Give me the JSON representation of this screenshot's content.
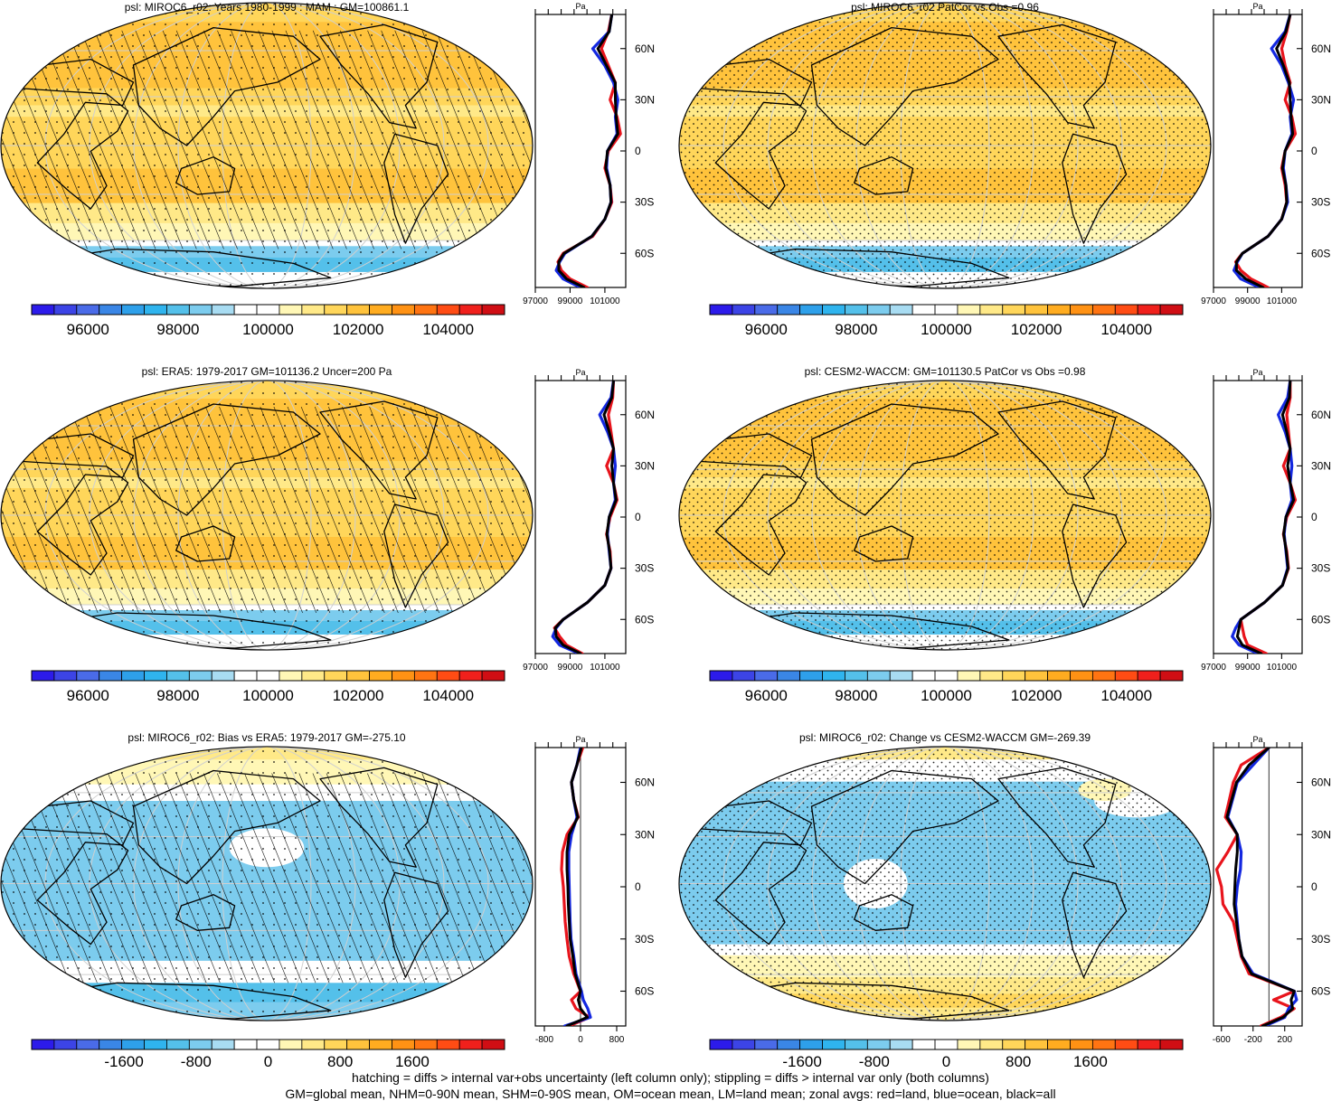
{
  "colors": {
    "abs_palette": [
      "#2c1bea",
      "#3c44e6",
      "#4a6be8",
      "#3a86e6",
      "#2ea0ea",
      "#2fb4ee",
      "#54c0ea",
      "#7cccee",
      "#a8dcf2",
      "#ffffff",
      "#ffffff",
      "#fff7b6",
      "#ffe988",
      "#ffd65a",
      "#ffc33c",
      "#ffac20",
      "#ff9214",
      "#ff7412",
      "#ff4c14",
      "#f0201c",
      "#d00e14"
    ],
    "diff_palette": [
      "#2c1bea",
      "#3c44e6",
      "#4a6be8",
      "#3a86e6",
      "#2ea0ea",
      "#2fb4ee",
      "#54c0ea",
      "#7cccee",
      "#a8dcf2",
      "#ffffff",
      "#ffffff",
      "#fff7b6",
      "#ffe988",
      "#ffd65a",
      "#ffc33c",
      "#ffac20",
      "#ff9214",
      "#ff7412",
      "#ff4c14",
      "#f0201c",
      "#d00e14"
    ],
    "land_line": "#e8141c",
    "ocean_line": "#1428e0",
    "all_line": "#000000"
  },
  "zonal_lat_ticks": [
    "60N",
    "30N",
    "0",
    "30S",
    "60S"
  ],
  "zonal_lat_values": [
    60,
    30,
    0,
    -30,
    -60
  ],
  "panels": [
    {
      "id": "mam-model",
      "title": "psl: MIROC6_r02: Years 1980-1999 : MAM : GM=100861.1",
      "kind": "abs",
      "hatch": true,
      "stipple": "light",
      "colorbar_labels": [
        "96000",
        "98000",
        "100000",
        "102000",
        "104000"
      ],
      "colorbar_values": [
        96000,
        98000,
        100000,
        102000,
        104000
      ],
      "colorbar_range": [
        94750,
        105250
      ],
      "zonal_unit": "Pa",
      "zonal_ticks": [
        "97000",
        "99000",
        "101000"
      ],
      "zonal_tick_values": [
        97000,
        99000,
        101000
      ],
      "zonal_xlim": [
        97000,
        102200
      ],
      "zonal_zero_line": false
    },
    {
      "id": "patcor",
      "title": "psl: MIROC6_r02 PatCor vs Obs =0.96",
      "kind": "abs",
      "hatch": false,
      "stipple": "dense",
      "colorbar_labels": [
        "96000",
        "98000",
        "100000",
        "102000",
        "104000"
      ],
      "colorbar_values": [
        96000,
        98000,
        100000,
        102000,
        104000
      ],
      "colorbar_range": [
        94750,
        105250
      ],
      "zonal_unit": "Pa",
      "zonal_ticks": [
        "97000",
        "99000",
        "101000"
      ],
      "zonal_tick_values": [
        97000,
        99000,
        101000
      ],
      "zonal_xlim": [
        97000,
        102200
      ],
      "zonal_zero_line": false
    },
    {
      "id": "era5",
      "title": "psl: ERA5: 1979-2017 GM=101136.2 Uncer=200 Pa",
      "kind": "abs",
      "hatch": true,
      "stipple": "light",
      "colorbar_labels": [
        "96000",
        "98000",
        "100000",
        "102000",
        "104000"
      ],
      "colorbar_values": [
        96000,
        98000,
        100000,
        102000,
        104000
      ],
      "colorbar_range": [
        94750,
        105250
      ],
      "zonal_unit": "Pa",
      "zonal_ticks": [
        "97000",
        "99000",
        "101000"
      ],
      "zonal_tick_values": [
        97000,
        99000,
        101000
      ],
      "zonal_xlim": [
        97000,
        102200
      ],
      "zonal_zero_line": false
    },
    {
      "id": "cesm2",
      "title": "psl: CESM2-WACCM: GM=101130.5 PatCor vs Obs =0.98",
      "kind": "abs",
      "hatch": false,
      "stipple": "dense",
      "colorbar_labels": [
        "96000",
        "98000",
        "100000",
        "102000",
        "104000"
      ],
      "colorbar_values": [
        96000,
        98000,
        100000,
        102000,
        104000
      ],
      "colorbar_range": [
        94750,
        105250
      ],
      "zonal_unit": "Pa",
      "zonal_ticks": [
        "97000",
        "99000",
        "101000"
      ],
      "zonal_tick_values": [
        97000,
        99000,
        101000
      ],
      "zonal_xlim": [
        97000,
        102200
      ],
      "zonal_zero_line": false
    },
    {
      "id": "bias",
      "title": "psl: MIROC6_r02: Bias vs ERA5: 1979-2017 GM=-275.10",
      "kind": "bias",
      "hatch": true,
      "stipple": "light",
      "colorbar_labels": [
        "-1600",
        "-800",
        "0",
        "800",
        "1600"
      ],
      "colorbar_values": [
        -1600,
        -800,
        0,
        800,
        1600
      ],
      "colorbar_range": [
        -2625,
        2625
      ],
      "zonal_unit": "Pa",
      "zonal_ticks": [
        "-800",
        "0",
        "800"
      ],
      "zonal_tick_values": [
        -800,
        0,
        800
      ],
      "zonal_xlim": [
        -1000,
        1000
      ],
      "zonal_zero_line": true
    },
    {
      "id": "change",
      "title": "psl: MIROC6_r02: Change vs CESM2-WACCM GM=-269.39",
      "kind": "change",
      "hatch": false,
      "stipple": "dense",
      "colorbar_labels": [
        "-1600",
        "-800",
        "0",
        "800",
        "1600"
      ],
      "colorbar_values": [
        -1600,
        -800,
        0,
        800,
        1600
      ],
      "colorbar_range": [
        -2625,
        2625
      ],
      "zonal_unit": "Pa",
      "zonal_ticks": [
        "-600",
        "-200",
        "200"
      ],
      "zonal_tick_values": [
        -600,
        -200,
        200
      ],
      "zonal_xlim": [
        -700,
        420
      ],
      "zonal_zero_line": true
    }
  ],
  "footer": {
    "line1": "hatching = diffs > internal var+obs uncertainty (left column only); stippling = diffs > internal var only (both columns)",
    "line2": "GM=global mean, NHM=0-90N mean, SHM=0-90S mean, OM=ocean mean, LM=land mean; zonal avgs: red=land, blue=ocean, black=all"
  },
  "chart_data": [
    {
      "type": "line",
      "title": "psl: MIROC6_r02: Years 1980-1999 : MAM : GM=100861.1",
      "xlabel": "Pa",
      "y": [
        80,
        70,
        60,
        50,
        40,
        30,
        20,
        10,
        0,
        -10,
        -20,
        -30,
        -40,
        -50,
        -60,
        -65,
        -70,
        -75,
        -80
      ],
      "series": [
        {
          "values": [
            101400,
            101200,
            100800,
            101200,
            101600,
            101300,
            101700,
            101900,
            101200,
            101000,
            101300,
            101400,
            101000,
            100300,
            98600,
            98300,
            98500,
            99000,
            100000
          ]
        },
        {
          "values": [
            101400,
            101250,
            100300,
            101000,
            101500,
            101750,
            101600,
            101700,
            101150,
            101100,
            101300,
            101350,
            101000,
            100250,
            98700,
            98400,
            98200,
            98600,
            99600
          ]
        },
        {
          "values": [
            101400,
            101250,
            100600,
            101100,
            101600,
            101600,
            101650,
            101750,
            101150,
            101050,
            101300,
            101350,
            101000,
            100250,
            98650,
            98350,
            98350,
            98800,
            99800
          ]
        }
      ]
    },
    {
      "type": "line",
      "title": "psl: MIROC6_r02 PatCor vs Obs =0.96",
      "xlabel": "Pa",
      "y": [
        80,
        70,
        60,
        50,
        40,
        30,
        20,
        10,
        0,
        -10,
        -20,
        -30,
        -40,
        -50,
        -60,
        -65,
        -70,
        -75,
        -80
      ],
      "series": [
        {
          "values": [
            101500,
            101300,
            101000,
            101200,
            101500,
            101200,
            101600,
            101800,
            101200,
            101000,
            101200,
            101300,
            101000,
            100200,
            98700,
            98300,
            98600,
            99200,
            100200
          ]
        },
        {
          "values": [
            101500,
            101200,
            100400,
            101000,
            101400,
            101700,
            101500,
            101600,
            101200,
            101100,
            101250,
            101350,
            101000,
            100200,
            98700,
            98400,
            98200,
            98600,
            99700
          ]
        },
        {
          "values": [
            101500,
            101250,
            100700,
            101100,
            101450,
            101500,
            101550,
            101650,
            101200,
            101050,
            101250,
            101300,
            101000,
            100200,
            98700,
            98350,
            98350,
            98900,
            99900
          ]
        }
      ]
    },
    {
      "type": "line",
      "title": "psl: ERA5: 1979-2017 GM=101136.2 Uncer=200 Pa",
      "xlabel": "Pa",
      "y": [
        80,
        70,
        60,
        50,
        40,
        30,
        20,
        10,
        0,
        -10,
        -20,
        -30,
        -40,
        -50,
        -60,
        -65,
        -70,
        -75,
        -80
      ],
      "series": [
        {
          "values": [
            101500,
            101450,
            101200,
            101350,
            101500,
            101100,
            101500,
            101700,
            101300,
            101100,
            101300,
            101350,
            101000,
            100000,
            98600,
            98100,
            98400,
            98800,
            99700
          ]
        },
        {
          "values": [
            101500,
            101350,
            100700,
            101150,
            101500,
            101600,
            101500,
            101600,
            101250,
            101150,
            101250,
            101350,
            101000,
            100000,
            98600,
            98200,
            98000,
            98400,
            99500
          ]
        },
        {
          "values": [
            101500,
            101400,
            100950,
            101250,
            101500,
            101400,
            101500,
            101650,
            101250,
            101120,
            101270,
            101350,
            101000,
            100000,
            98600,
            98150,
            98200,
            98600,
            99600
          ]
        }
      ]
    },
    {
      "type": "line",
      "title": "psl: CESM2-WACCM: GM=101130.5 PatCor vs Obs =0.98",
      "xlabel": "Pa",
      "y": [
        80,
        70,
        60,
        50,
        40,
        30,
        20,
        10,
        0,
        -10,
        -20,
        -30,
        -40,
        -50,
        -60,
        -65,
        -70,
        -75,
        -80
      ],
      "series": [
        {
          "values": [
            101500,
            101500,
            101300,
            101400,
            101500,
            101100,
            101500,
            101800,
            101300,
            101100,
            101300,
            101400,
            101050,
            100000,
            98600,
            98700,
            98800,
            99000,
            100100
          ]
        },
        {
          "values": [
            101500,
            101350,
            100800,
            101200,
            101500,
            101600,
            101500,
            101600,
            101250,
            101150,
            101250,
            101350,
            101050,
            100000,
            98600,
            98300,
            98100,
            98500,
            99600
          ]
        },
        {
          "values": [
            101500,
            101450,
            101050,
            101300,
            101500,
            101350,
            101500,
            101700,
            101250,
            101120,
            101270,
            101380,
            101050,
            100000,
            98600,
            98500,
            98400,
            98700,
            99800
          ]
        }
      ]
    },
    {
      "type": "line",
      "title": "psl: MIROC6_r02: Bias vs ERA5: 1979-2017 GM=-275.10",
      "xlabel": "Pa",
      "y": [
        80,
        70,
        60,
        50,
        40,
        30,
        20,
        10,
        0,
        -10,
        -20,
        -30,
        -40,
        -50,
        -60,
        -65,
        -70,
        -75,
        -80
      ],
      "series": [
        {
          "values": [
            50,
            -80,
            -200,
            -150,
            -50,
            -300,
            -400,
            -420,
            -380,
            -360,
            -340,
            -300,
            -250,
            -150,
            0,
            -200,
            -100,
            200,
            -250
          ]
        },
        {
          "values": [
            0,
            -80,
            -200,
            -150,
            -80,
            -200,
            -260,
            -260,
            -250,
            -240,
            -230,
            -210,
            -150,
            -100,
            20,
            60,
            160,
            220,
            -350
          ]
        },
        {
          "values": [
            20,
            -80,
            -200,
            -150,
            -60,
            -250,
            -300,
            -300,
            -280,
            -270,
            -250,
            -230,
            -170,
            -120,
            0,
            -50,
            0,
            150,
            -300
          ]
        }
      ]
    },
    {
      "type": "line",
      "title": "psl: MIROC6_r02: Change vs CESM2-WACCM GM=-269.39",
      "xlabel": "Pa",
      "y": [
        80,
        70,
        60,
        50,
        40,
        30,
        20,
        10,
        0,
        -10,
        -20,
        -30,
        -40,
        -50,
        -60,
        -65,
        -70,
        -75,
        -80
      ],
      "series": [
        {
          "values": [
            0,
            -350,
            -450,
            -500,
            -550,
            -400,
            -520,
            -660,
            -600,
            -580,
            -450,
            -400,
            -350,
            -250,
            320,
            60,
            320,
            150,
            -100
          ]
        },
        {
          "values": [
            0,
            -200,
            -400,
            -460,
            -520,
            -400,
            -350,
            -360,
            -400,
            -420,
            -400,
            -380,
            -340,
            -200,
            320,
            350,
            250,
            200,
            -50
          ]
        },
        {
          "values": [
            0,
            -250,
            -410,
            -470,
            -530,
            -400,
            -400,
            -420,
            -430,
            -440,
            -410,
            -380,
            -340,
            -220,
            320,
            280,
            300,
            180,
            -80
          ]
        }
      ]
    }
  ]
}
